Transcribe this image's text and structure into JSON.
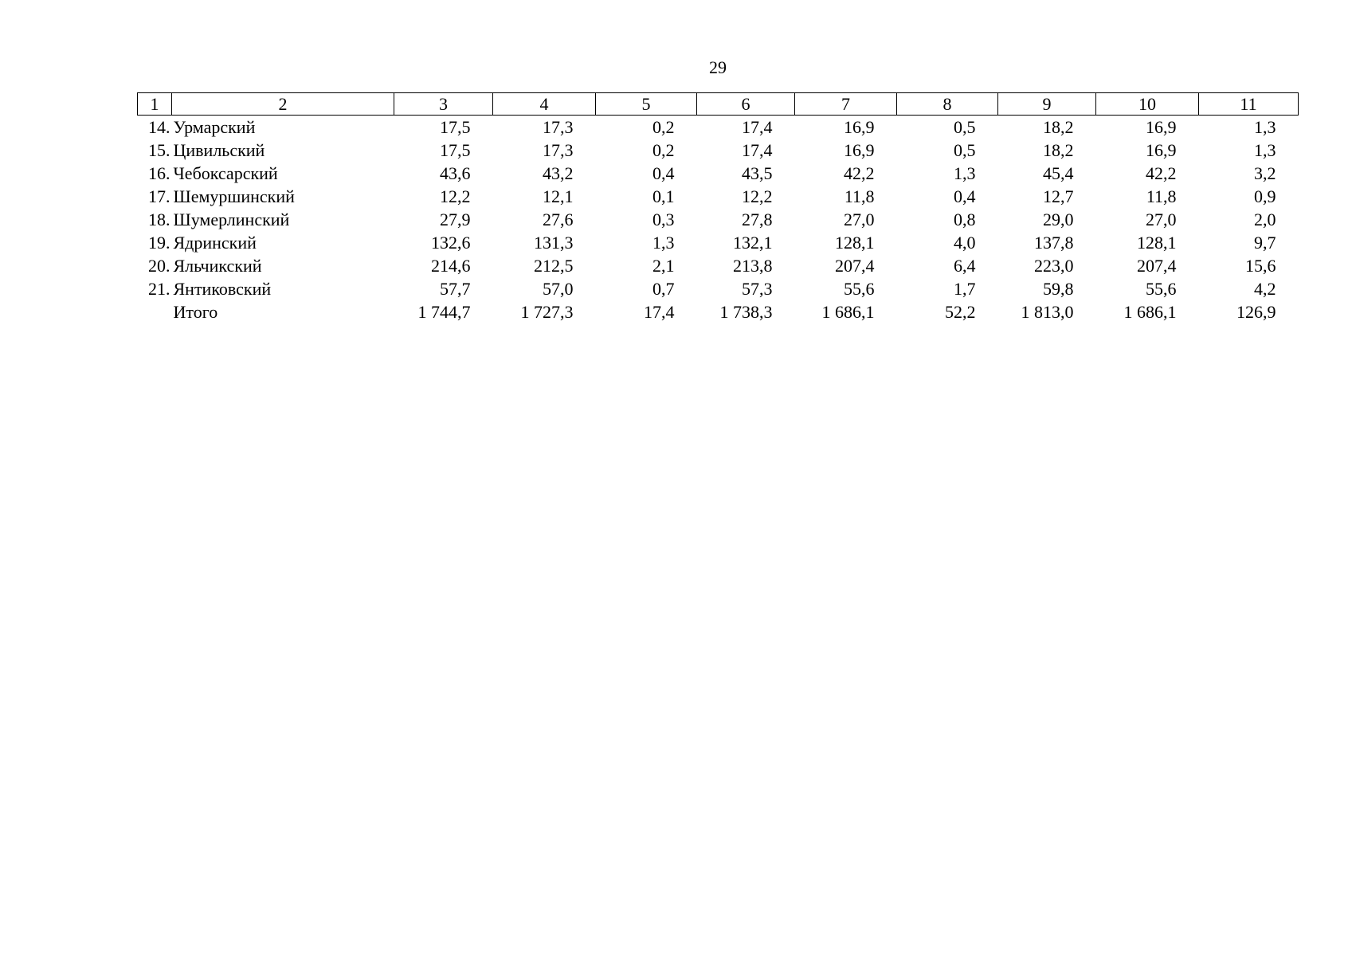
{
  "page_number": "29",
  "table": {
    "header": [
      "1",
      "2",
      "3",
      "4",
      "5",
      "6",
      "7",
      "8",
      "9",
      "10",
      "11"
    ],
    "rows": [
      {
        "num": "14.",
        "name": "Урмарский",
        "cells": [
          "17,5",
          "17,3",
          "0,2",
          "17,4",
          "16,9",
          "0,5",
          "18,2",
          "16,9",
          "1,3"
        ]
      },
      {
        "num": "15.",
        "name": "Цивильский",
        "cells": [
          "17,5",
          "17,3",
          "0,2",
          "17,4",
          "16,9",
          "0,5",
          "18,2",
          "16,9",
          "1,3"
        ]
      },
      {
        "num": "16.",
        "name": "Чебоксарский",
        "cells": [
          "43,6",
          "43,2",
          "0,4",
          "43,5",
          "42,2",
          "1,3",
          "45,4",
          "42,2",
          "3,2"
        ]
      },
      {
        "num": "17.",
        "name": "Шемуршинский",
        "cells": [
          "12,2",
          "12,1",
          "0,1",
          "12,2",
          "11,8",
          "0,4",
          "12,7",
          "11,8",
          "0,9"
        ]
      },
      {
        "num": "18.",
        "name": "Шумерлинский",
        "cells": [
          "27,9",
          "27,6",
          "0,3",
          "27,8",
          "27,0",
          "0,8",
          "29,0",
          "27,0",
          "2,0"
        ]
      },
      {
        "num": "19.",
        "name": "Ядринский",
        "cells": [
          "132,6",
          "131,3",
          "1,3",
          "132,1",
          "128,1",
          "4,0",
          "137,8",
          "128,1",
          "9,7"
        ]
      },
      {
        "num": "20.",
        "name": "Яльчикский",
        "cells": [
          "214,6",
          "212,5",
          "2,1",
          "213,8",
          "207,4",
          "6,4",
          "223,0",
          "207,4",
          "15,6"
        ]
      },
      {
        "num": "21.",
        "name": "Янтиковский",
        "cells": [
          "57,7",
          "57,0",
          "0,7",
          "57,3",
          "55,6",
          "1,7",
          "59,8",
          "55,6",
          "4,2"
        ]
      },
      {
        "name": "Итого",
        "cells": [
          "1 744,7",
          "1 727,3",
          "17,4",
          "1 738,3",
          "1 686,1",
          "52,2",
          "1 813,0",
          "1 686,1",
          "126,9"
        ]
      }
    ]
  }
}
